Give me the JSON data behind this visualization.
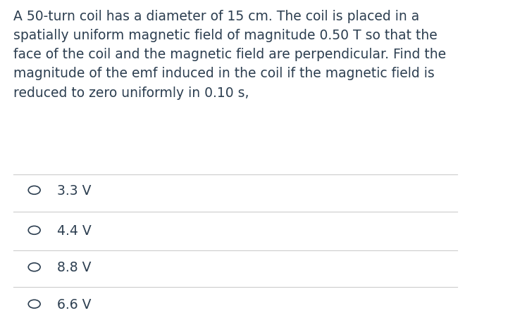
{
  "background_color": "#ffffff",
  "question_text": "A 50-turn coil has a diameter of 15 cm. The coil is placed in a\nspatially uniform magnetic field of magnitude 0.50 T so that the\nface of the coil and the magnetic field are perpendicular. Find the\nmagnitude of the emf induced in the coil if the magnetic field is\nreduced to zero uniformly in 0.10 s,",
  "options": [
    "3.3 V",
    "4.4 V",
    "8.8 V",
    "6.6 V"
  ],
  "text_color": "#2c3e50",
  "option_text_color": "#2c3e50",
  "circle_color": "#2c3e50",
  "line_color": "#cccccc",
  "question_fontsize": 13.5,
  "option_fontsize": 13.5,
  "fig_width": 7.21,
  "fig_height": 4.56
}
